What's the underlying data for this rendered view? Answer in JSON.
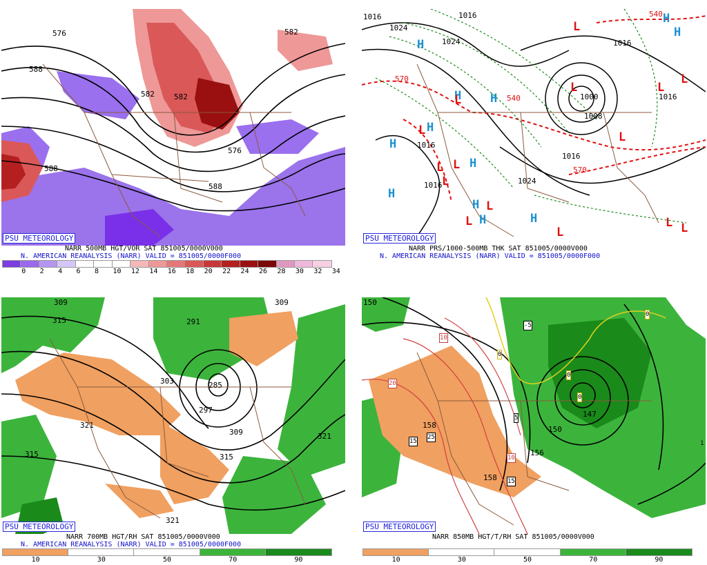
{
  "panels": {
    "tl": {
      "org": "PSU METEOROLOGY",
      "line1": "NARR 500MB HGT/VOR SAT 851005/0000V000",
      "line2": "N. AMERICAN REANALYSIS (NARR) VALID = 851005/0000F000",
      "colorbar": {
        "ticks": [
          "0",
          "2",
          "4",
          "6",
          "8",
          "10",
          "12",
          "14",
          "16",
          "18",
          "20",
          "22",
          "24",
          "26",
          "28",
          "30",
          "32",
          "34"
        ],
        "colors": [
          "#7c3ce0",
          "#9a68ec",
          "#b496f0",
          "#d6c6f8",
          "#ffffff",
          "#ffffff",
          "#ffffff",
          "#f4b8b8",
          "#ee9898",
          "#e47878",
          "#da5858",
          "#c83838",
          "#b42020",
          "#9a1010",
          "#7a0808",
          "#e098c0",
          "#f0b8d8",
          "#f8d0e4"
        ]
      },
      "contour_labels": [
        "576",
        "588",
        "582",
        "582",
        "576",
        "588",
        "588",
        "582"
      ]
    },
    "tr": {
      "org": "PSU METEOROLOGY",
      "line1": "NARR PRS/1000-500MB THK SAT 851005/0000V000",
      "line2": "N. AMERICAN REANALYSIS (NARR) VALID = 851005/0000F000",
      "isobar_labels": [
        "1016",
        "1024",
        "1016",
        "1024",
        "1016",
        "1024",
        "1016",
        "1016",
        "1016",
        "1016",
        "1008",
        "1016",
        "1016",
        "1024",
        "1000",
        "1008",
        "570",
        "540",
        "570",
        "540",
        "540",
        "570"
      ],
      "high_symbol": "H",
      "low_symbol": "L"
    },
    "bl": {
      "org": "PSU METEOROLOGY",
      "line1": "NARR 700MB HGT/RH SAT 851005/0000V000",
      "line2": "N. AMERICAN REANALYSIS (NARR) VALID = 851005/0000F000",
      "colorbar": {
        "ticks": [
          "10",
          "30",
          "50",
          "70",
          "90"
        ],
        "colors": [
          "#f0a060",
          "#ffffff",
          "#ffffff",
          "#3cb43c",
          "#1a8a1a"
        ]
      },
      "contour_labels": [
        "309",
        "315",
        "291",
        "303",
        "309",
        "321",
        "297",
        "285",
        "309",
        "315",
        "321",
        "315",
        "321",
        "309"
      ]
    },
    "br": {
      "org": "PSU METEOROLOGY",
      "line1": "NARR 850MB HGT/T/RH SAT 851005/0000V000",
      "colorbar": {
        "ticks": [
          "10",
          "30",
          "50",
          "70",
          "90"
        ],
        "colors": [
          "#f0a060",
          "#ffffff",
          "#ffffff",
          "#3cb43c",
          "#1a8a1a"
        ]
      },
      "contour_labels": [
        "150",
        "158",
        "156",
        "150",
        "147",
        "156",
        "158"
      ],
      "temp_labels": [
        "-5",
        "0",
        "0",
        "0",
        "0",
        "5",
        "10",
        "10",
        "15",
        "15",
        "20",
        "25",
        "1",
        "0"
      ]
    }
  },
  "colors": {
    "bg": "#ffffff",
    "borders": "#8b5a3c",
    "high": "#1a90d0",
    "low": "#e01010",
    "thickness": "#e01010",
    "isobars": "#000000",
    "green_contours": "#1a8a1a",
    "badge_text": "#1a1ae0"
  }
}
